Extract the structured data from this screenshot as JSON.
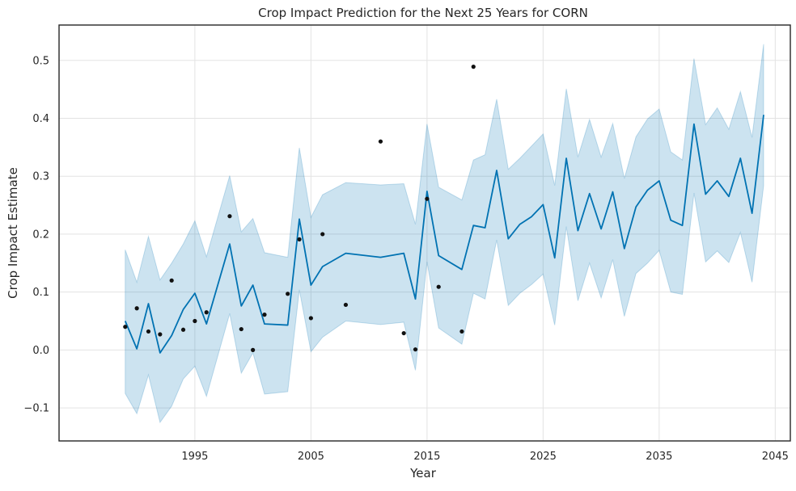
{
  "chart_data": {
    "type": "line",
    "title": "Crop Impact Prediction for the Next 25 Years for CORN",
    "xlabel": "Year",
    "ylabel": "Crop Impact Estimate",
    "xlim": [
      1983.3,
      2046.3
    ],
    "ylim": [
      -0.157,
      0.561
    ],
    "xticks": [
      1995,
      2005,
      2015,
      2025,
      2035,
      2045
    ],
    "yticks": [
      -0.1,
      0.0,
      0.1,
      0.2,
      0.3,
      0.4,
      0.5
    ],
    "ytick_labels": [
      "−0.1",
      "0.0",
      "0.1",
      "0.2",
      "0.3",
      "0.4",
      "0.5"
    ],
    "grid": true,
    "colors": {
      "forecast": "#0072b2",
      "band": "#0072b2",
      "observed": "#111111"
    },
    "forecast": {
      "x": [
        1989,
        1990,
        1991,
        1992,
        1993,
        1994,
        1995,
        1996,
        1998,
        1999,
        2000,
        2001,
        2003,
        2004,
        2005,
        2006,
        2008,
        2011,
        2013,
        2014,
        2015,
        2016,
        2018,
        2019,
        2020,
        2021,
        2022,
        2023,
        2024,
        2025,
        2026,
        2027,
        2028,
        2029,
        2030,
        2031,
        2032,
        2033,
        2034,
        2035,
        2036,
        2037,
        2038,
        2039,
        2040,
        2041,
        2042,
        2043,
        2044
      ],
      "yhat": [
        0.05,
        0.002,
        0.08,
        -0.005,
        0.025,
        0.07,
        0.098,
        0.045,
        0.183,
        0.076,
        0.112,
        0.045,
        0.043,
        0.226,
        0.112,
        0.144,
        0.167,
        0.16,
        0.167,
        0.088,
        0.274,
        0.163,
        0.139,
        0.215,
        0.211,
        0.31,
        0.192,
        0.217,
        0.23,
        0.251,
        0.159,
        0.331,
        0.206,
        0.27,
        0.209,
        0.273,
        0.175,
        0.247,
        0.276,
        0.292,
        0.224,
        0.215,
        0.39,
        0.269,
        0.292,
        0.265,
        0.331,
        0.236,
        0.406
      ],
      "upper": [
        0.173,
        0.117,
        0.196,
        0.121,
        0.15,
        0.183,
        0.223,
        0.161,
        0.301,
        0.204,
        0.227,
        0.168,
        0.16,
        0.349,
        0.229,
        0.268,
        0.289,
        0.285,
        0.287,
        0.217,
        0.39,
        0.281,
        0.259,
        0.328,
        0.337,
        0.433,
        0.312,
        0.331,
        0.352,
        0.373,
        0.284,
        0.451,
        0.333,
        0.398,
        0.333,
        0.391,
        0.296,
        0.368,
        0.399,
        0.416,
        0.342,
        0.328,
        0.503,
        0.389,
        0.418,
        0.381,
        0.446,
        0.367,
        0.528
      ],
      "lower": [
        -0.075,
        -0.11,
        -0.043,
        -0.125,
        -0.097,
        -0.05,
        -0.028,
        -0.08,
        0.063,
        -0.04,
        -0.005,
        -0.076,
        -0.072,
        0.104,
        -0.003,
        0.022,
        0.05,
        0.044,
        0.048,
        -0.035,
        0.152,
        0.038,
        0.01,
        0.098,
        0.088,
        0.19,
        0.077,
        0.098,
        0.113,
        0.131,
        0.043,
        0.213,
        0.085,
        0.15,
        0.09,
        0.156,
        0.058,
        0.132,
        0.15,
        0.172,
        0.1,
        0.096,
        0.271,
        0.152,
        0.171,
        0.151,
        0.203,
        0.117,
        0.284
      ]
    },
    "observed": {
      "x": [
        1989,
        1990,
        1991,
        1992,
        1993,
        1994,
        1995,
        1996,
        1998,
        1999,
        2000,
        2001,
        2003,
        2004,
        2005,
        2006,
        2008,
        2011,
        2013,
        2014,
        2015,
        2016,
        2018,
        2019
      ],
      "y": [
        0.04,
        0.072,
        0.032,
        0.027,
        0.12,
        0.035,
        0.05,
        0.065,
        0.231,
        0.036,
        0.0,
        0.061,
        0.097,
        0.191,
        0.055,
        0.2,
        0.078,
        0.36,
        0.029,
        0.001,
        0.261,
        0.109,
        0.032,
        0.489
      ]
    }
  }
}
